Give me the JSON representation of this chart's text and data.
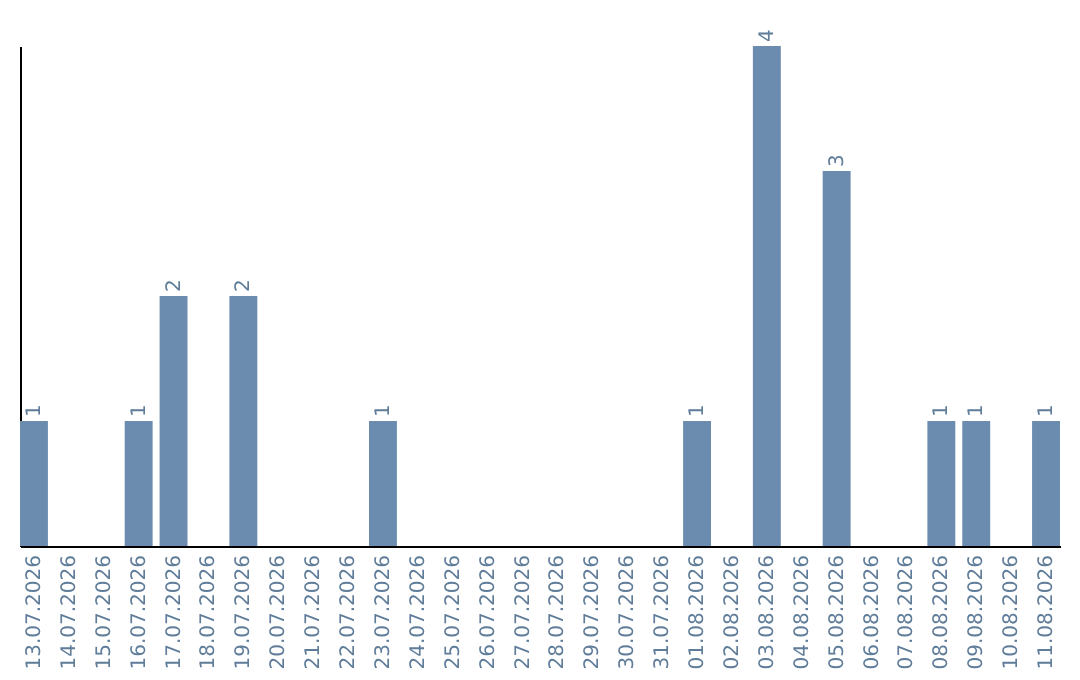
{
  "chart_data": {
    "type": "bar",
    "categories": [
      "13.07.2026",
      "14.07.2026",
      "15.07.2026",
      "16.07.2026",
      "17.07.2026",
      "18.07.2026",
      "19.07.2026",
      "20.07.2026",
      "21.07.2026",
      "22.07.2026",
      "23.07.2026",
      "24.07.2026",
      "25.07.2026",
      "26.07.2026",
      "27.07.2026",
      "28.07.2026",
      "29.07.2026",
      "30.07.2026",
      "31.07.2026",
      "01.08.2026",
      "02.08.2026",
      "03.08.2026",
      "04.08.2026",
      "05.08.2026",
      "06.08.2026",
      "07.08.2026",
      "08.08.2026",
      "09.08.2026",
      "10.08.2026",
      "11.08.2026"
    ],
    "values": [
      1,
      0,
      0,
      1,
      2,
      0,
      2,
      0,
      0,
      0,
      1,
      0,
      0,
      0,
      0,
      0,
      0,
      0,
      0,
      1,
      0,
      4,
      0,
      3,
      0,
      0,
      1,
      1,
      0,
      1
    ],
    "value_labels": [
      "1",
      null,
      null,
      "1",
      "2",
      null,
      "2",
      null,
      null,
      null,
      "1",
      null,
      null,
      null,
      null,
      null,
      null,
      null,
      null,
      "1",
      null,
      "4",
      null,
      "3",
      null,
      null,
      "1",
      "1",
      null,
      "1"
    ],
    "color": "#6b8cae",
    "tick_labels": "x",
    "grid": false
  }
}
